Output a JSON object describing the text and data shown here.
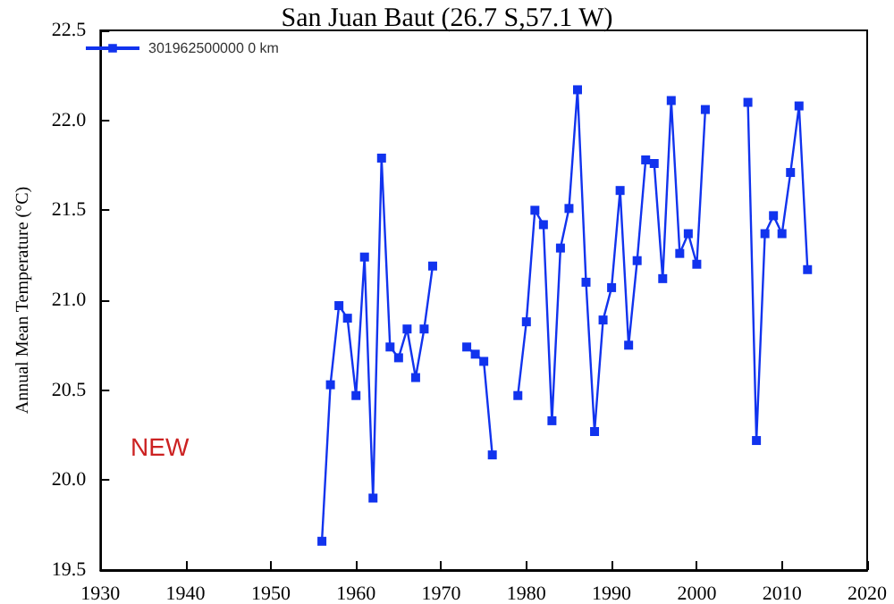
{
  "chart_data": {
    "type": "line",
    "title": "San Juan Baut (26.7 S,57.1 W)",
    "ylabel": "Annual Mean Temperature (°C)",
    "x": [
      1956,
      1957,
      1958,
      1959,
      1960,
      1961,
      1962,
      1963,
      1964,
      1965,
      1966,
      1967,
      1968,
      1969,
      1970,
      1971,
      1972,
      1973,
      1974,
      1975,
      1976,
      1977,
      1978,
      1979,
      1980,
      1981,
      1982,
      1983,
      1984,
      1985,
      1986,
      1987,
      1988,
      1989,
      1990,
      1991,
      1992,
      1993,
      1994,
      1995,
      1996,
      1997,
      1998,
      1999,
      2000,
      2001,
      2002,
      2003,
      2004,
      2005,
      2006,
      2007,
      2008,
      2009,
      2010,
      2011,
      2012,
      2013
    ],
    "series": [
      {
        "name": "301962500000 0 km",
        "color": "#1133ee",
        "values": [
          19.66,
          20.53,
          20.97,
          20.9,
          20.47,
          21.24,
          19.9,
          21.79,
          20.74,
          20.68,
          20.84,
          20.57,
          20.84,
          21.19,
          null,
          null,
          null,
          20.74,
          20.7,
          20.66,
          20.14,
          null,
          null,
          20.47,
          20.88,
          21.5,
          21.42,
          20.33,
          21.29,
          21.51,
          22.17,
          21.1,
          20.27,
          20.89,
          21.07,
          21.61,
          20.75,
          21.22,
          21.78,
          21.76,
          21.12,
          22.11,
          21.26,
          21.37,
          21.2,
          22.06,
          null,
          null,
          null,
          null,
          22.1,
          20.22,
          21.37,
          21.47,
          21.37,
          21.71,
          22.08,
          21.17
        ]
      }
    ],
    "xlim": [
      1930,
      2020
    ],
    "xticks": [
      1930,
      1940,
      1950,
      1960,
      1970,
      1980,
      1990,
      2000,
      2010,
      2020
    ],
    "ylim": [
      19.5,
      22.5
    ],
    "yticks": [
      19.5,
      {
        "value": 20,
        "label": "20.0"
      },
      20.5,
      {
        "value": 21,
        "label": "21.0"
      },
      21.5,
      {
        "value": 22,
        "label": "22.0"
      },
      22.5
    ],
    "annotations": [
      "NEW"
    ],
    "grid": false,
    "legend": "top left",
    "marker": "square",
    "line_style": "solid"
  }
}
